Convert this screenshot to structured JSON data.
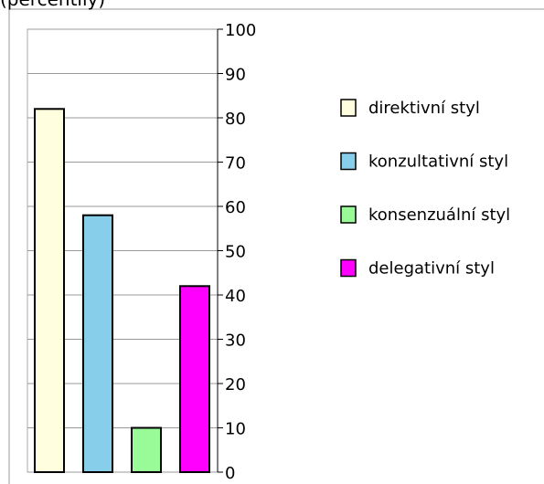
{
  "chart_data": {
    "type": "bar",
    "title": "(percentily)",
    "series": [
      {
        "name": "direktivní styl",
        "color": "#ffffe0",
        "values": [
          82
        ]
      },
      {
        "name": "konzultativní styl",
        "color": "#87ceeb",
        "values": [
          58
        ]
      },
      {
        "name": "konsenzuální styl",
        "color": "#98fb98",
        "values": [
          10
        ]
      },
      {
        "name": "delegativní styl",
        "color": "#ff00ff",
        "values": [
          42
        ]
      }
    ],
    "ylim": [
      0,
      100
    ],
    "yticks": [
      0,
      10,
      20,
      30,
      40,
      50,
      60,
      70,
      80,
      90,
      100
    ],
    "grid": true,
    "legend": "right"
  }
}
